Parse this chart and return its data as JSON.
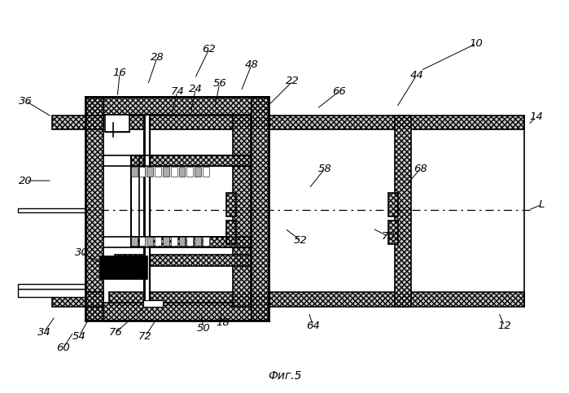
{
  "title": "Фиг.5",
  "bg_color": "#ffffff"
}
